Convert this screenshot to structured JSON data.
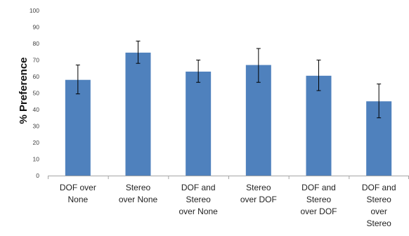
{
  "chart_data": {
    "type": "bar",
    "title": "",
    "xlabel": "",
    "ylabel": "% Preference",
    "ylim": [
      0,
      100
    ],
    "yticks": [
      0,
      10,
      20,
      30,
      40,
      50,
      60,
      70,
      80,
      90,
      100
    ],
    "grid": false,
    "categories": [
      [
        "DOF over",
        "None"
      ],
      [
        "Stereo",
        "over None"
      ],
      [
        "DOF and",
        "Stereo",
        "over None"
      ],
      [
        "Stereo",
        "over DOF"
      ],
      [
        "DOF and",
        "Stereo",
        "over DOF"
      ],
      [
        "DOF and",
        "Stereo",
        "over",
        "Stereo"
      ]
    ],
    "values": [
      58,
      74.5,
      63,
      67,
      60.5,
      45
    ],
    "error_low": [
      49.5,
      68,
      56.5,
      56.5,
      51.5,
      35
    ],
    "error_high": [
      67,
      81.5,
      70,
      77,
      70,
      55.5
    ],
    "bar_color": "#4f81bd",
    "error_color": "#000000"
  }
}
